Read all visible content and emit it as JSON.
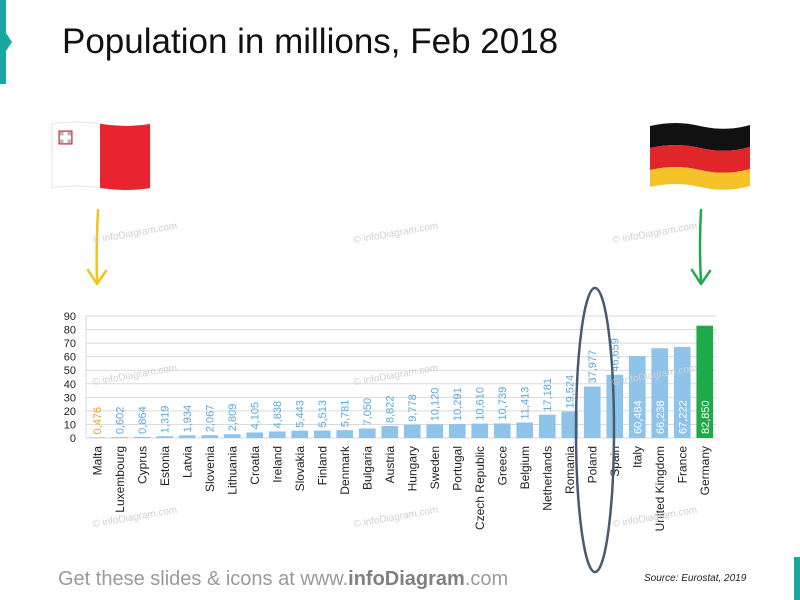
{
  "title": "Population in millions, Feb 2018",
  "footer": {
    "prefix": "Get these slides & icons at www.",
    "brand": "infoDiagram",
    "suffix": ".com"
  },
  "source": "Source: Eurostat, 2019",
  "watermark": "© infoDiagram.com",
  "colors": {
    "accent_teal": "#1aa6a0",
    "bar_default": "#8ec3ea",
    "bar_max": "#1faa4a",
    "label_min": "#f0a020",
    "arrow_min": "#f2c318",
    "arrow_max": "#1faa4a",
    "highlight_ellipse": "#4a5a72"
  },
  "flags": {
    "min": {
      "icon": "malta-flag-icon"
    },
    "max": {
      "icon": "germany-flag-icon"
    }
  },
  "chart_data": {
    "type": "bar",
    "categories": [
      "Malta",
      "Luxembourg",
      "Cyprus",
      "Estonia",
      "Latvia",
      "Slovenia",
      "Lithuania",
      "Croatia",
      "Ireland",
      "Slovakia",
      "Finland",
      "Denmark",
      "Bulgaria",
      "Austria",
      "Hungary",
      "Sweden",
      "Portugal",
      "Czech Republic",
      "Greece",
      "Belgium",
      "Netherlands",
      "Romania",
      "Poland",
      "Spain",
      "Italy",
      "United Kingdom",
      "France",
      "Germany"
    ],
    "values": [
      0.476,
      0.602,
      0.864,
      1.319,
      1.934,
      2.067,
      2.809,
      4.105,
      4.838,
      5.443,
      5.513,
      5.781,
      7.05,
      8.822,
      9.778,
      10.12,
      10.291,
      10.61,
      10.739,
      11.413,
      17.181,
      19.524,
      37.977,
      46.659,
      60.484,
      66.238,
      67.222,
      82.85
    ],
    "value_labels": [
      "0,476",
      "0,602",
      "0,864",
      "1,319",
      "1,934",
      "2,067",
      "2,809",
      "4,105",
      "4,838",
      "5,443",
      "5,513",
      "5,781",
      "7,050",
      "8,822",
      "9,778",
      "10,120",
      "10,291",
      "10,610",
      "10,739",
      "11,413",
      "17,181",
      "19,524",
      "37,977",
      "46,659",
      "60,484",
      "66,238",
      "67,222",
      "82,850"
    ],
    "yticks": [
      "0",
      "10",
      "20",
      "30",
      "40",
      "50",
      "60",
      "70",
      "80",
      "90"
    ],
    "ylim": [
      0,
      90
    ],
    "grid": true,
    "highlighted_category": "Poland",
    "min_category": "Malta",
    "max_category": "Germany"
  }
}
